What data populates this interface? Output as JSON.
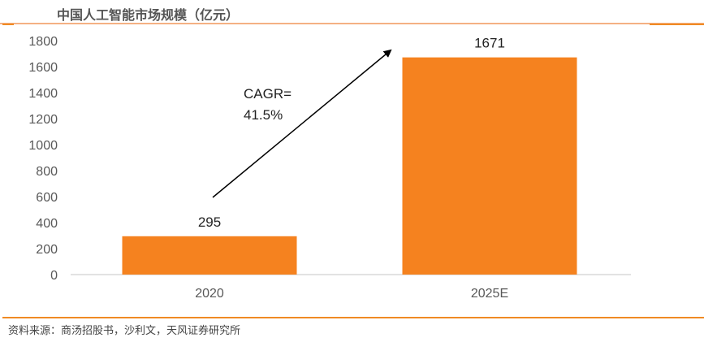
{
  "header": {
    "title": "中国人工智能市场规模（亿元）"
  },
  "footer": {
    "source": "资料来源：商汤招股书，沙利文，天风证券研究所"
  },
  "chart_data": {
    "type": "bar",
    "title": "中国人工智能市场规模（亿元）",
    "categories": [
      "2020",
      "2025E"
    ],
    "values": [
      295,
      1671
    ],
    "data_labels": [
      "295",
      "1671"
    ],
    "ylim": [
      0,
      1800
    ],
    "yticks": [
      0,
      200,
      400,
      600,
      800,
      1000,
      1200,
      1400,
      1600,
      1800
    ],
    "grid": false,
    "bar_color": "#f5821f",
    "annotation": {
      "lines": [
        "CAGR=",
        "41.5%"
      ],
      "arrow": "from 2020 bar up to 2025E bar"
    }
  }
}
